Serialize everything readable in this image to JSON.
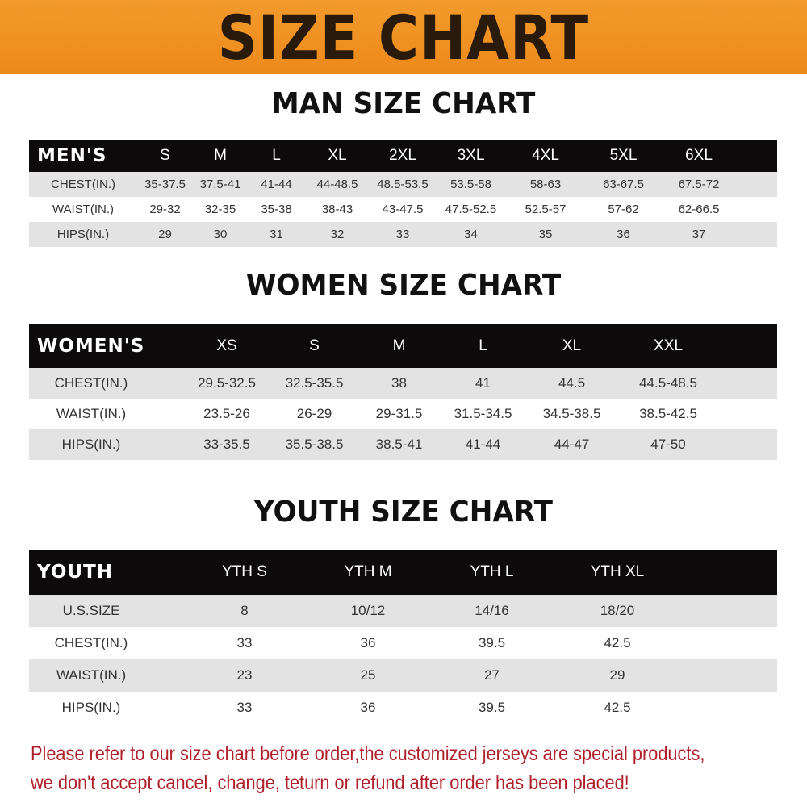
{
  "banner": {
    "title": "SIZE CHART",
    "color": "#ef921f"
  },
  "men": {
    "title": "MAN SIZE CHART",
    "header": [
      "MEN'S",
      "S",
      "M",
      "L",
      "XL",
      "2XL",
      "3XL",
      "4XL",
      "5XL",
      "6XL"
    ],
    "rows": [
      [
        "CHEST(IN.)",
        "35-37.5",
        "37.5-41",
        "41-44",
        "44-48.5",
        "48.5-53.5",
        "53.5-58",
        "58-63",
        "63-67.5",
        "67.5-72"
      ],
      [
        "WAIST(IN.)",
        "29-32",
        "32-35",
        "35-38",
        "38-43",
        "43-47.5",
        "47.5-52.5",
        "52.5-57",
        "57-62",
        "62-66.5"
      ],
      [
        "HIPS(IN.)",
        "29",
        "30",
        "31",
        "32",
        "33",
        "34",
        "35",
        "36",
        "37"
      ]
    ]
  },
  "women": {
    "title": "WOMEN SIZE CHART",
    "header": [
      "WOMEN'S",
      "XS",
      "S",
      "M",
      "L",
      "XL",
      "XXL"
    ],
    "rows": [
      [
        "CHEST(IN.)",
        "29.5-32.5",
        "32.5-35.5",
        "38",
        "41",
        "44.5",
        "44.5-48.5"
      ],
      [
        "WAIST(IN.)",
        "23.5-26",
        "26-29",
        "29-31.5",
        "31.5-34.5",
        "34.5-38.5",
        "38.5-42.5"
      ],
      [
        "HIPS(IN.)",
        "33-35.5",
        "35.5-38.5",
        "38.5-41",
        "41-44",
        "44-47",
        "47-50"
      ]
    ]
  },
  "youth": {
    "title": "YOUTH SIZE CHART",
    "header": [
      "YOUTH",
      "YTH S",
      "YTH M",
      "YTH L",
      "YTH XL"
    ],
    "rows": [
      [
        "U.S.SIZE",
        "8",
        "10/12",
        "14/16",
        "18/20"
      ],
      [
        "CHEST(IN.)",
        "33",
        "36",
        "39.5",
        "42.5"
      ],
      [
        "WAIST(IN.)",
        "23",
        "25",
        "27",
        "29"
      ],
      [
        "HIPS(IN.)",
        "33",
        "36",
        "39.5",
        "42.5"
      ]
    ]
  },
  "notice": {
    "line1": "Please refer to our size chart before order,the customized jerseys are special products,",
    "line2": "we don't accept cancel, change, teturn or refund after order has been placed!",
    "color": "#b0202a"
  }
}
